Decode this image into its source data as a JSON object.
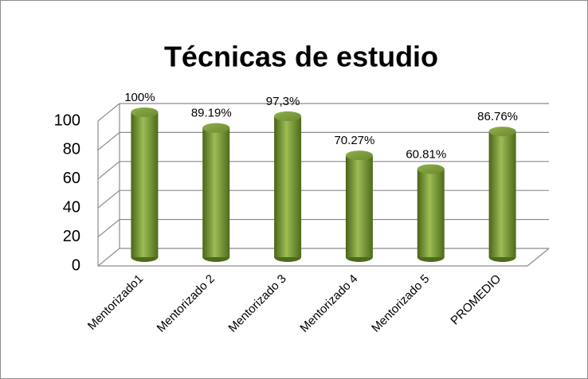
{
  "chart_data": {
    "type": "bar3d",
    "title": "Técnicas de estudio",
    "categories": [
      "Mentorizado1",
      "Mentorizado 2",
      "Mentorizado 3",
      "Mentorizado 4",
      "Mentorizado 5",
      "PROMEDIO"
    ],
    "values": [
      100,
      89.19,
      97.3,
      70.27,
      60.81,
      86.76
    ],
    "value_labels": [
      "100%",
      "89.19%",
      "97,3%",
      "70.27%",
      "60.81%",
      "86.76%"
    ],
    "color": "#77933c",
    "ylim": [
      0,
      100
    ],
    "yticks": [
      0,
      20,
      40,
      60,
      80,
      100
    ],
    "grid": true
  }
}
